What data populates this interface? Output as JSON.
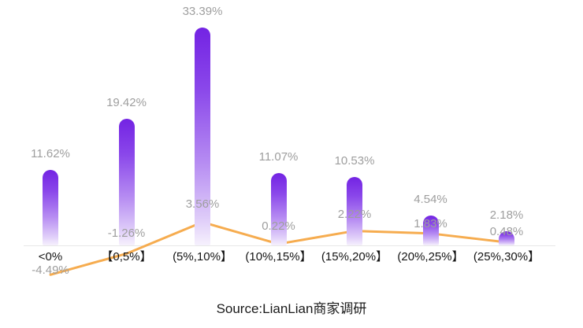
{
  "chart_data": {
    "type": "bar+line",
    "title": "",
    "xlabel": "",
    "ylabel": "",
    "categories": [
      "<0%",
      "【0,5%】",
      "(5%,10%】",
      "(10%,15%】",
      "(15%,20%】",
      "(20%,25%】",
      "(25%,30%】"
    ],
    "series": [
      {
        "name": "bar-series",
        "type": "bar",
        "values": [
          11.62,
          19.42,
          33.39,
          11.07,
          10.53,
          4.54,
          2.18
        ],
        "labels": [
          "11.62%",
          "19.42%",
          "33.39%",
          "11.07%",
          "10.53%",
          "4.54%",
          "2.18%"
        ],
        "color_top": "#7323E3",
        "color_bottom": "#F6F1FD"
      },
      {
        "name": "line-series",
        "type": "line",
        "values": [
          -4.49,
          -1.26,
          3.56,
          0.22,
          2.22,
          1.83,
          0.48
        ],
        "labels": [
          "-4.49%",
          "-1.26%",
          "3.56%",
          "0.22%",
          "2.22%",
          "1.83%",
          "0.48%"
        ],
        "color": "#F6AC4F"
      }
    ],
    "legend": "none",
    "grid": "off",
    "axis_range_note": "baseline at 0%, bars up to ~33.4%",
    "label_color": "#9E9E9E",
    "axis_label_color": "#141414",
    "source": "Source:LianLian商家调研"
  }
}
